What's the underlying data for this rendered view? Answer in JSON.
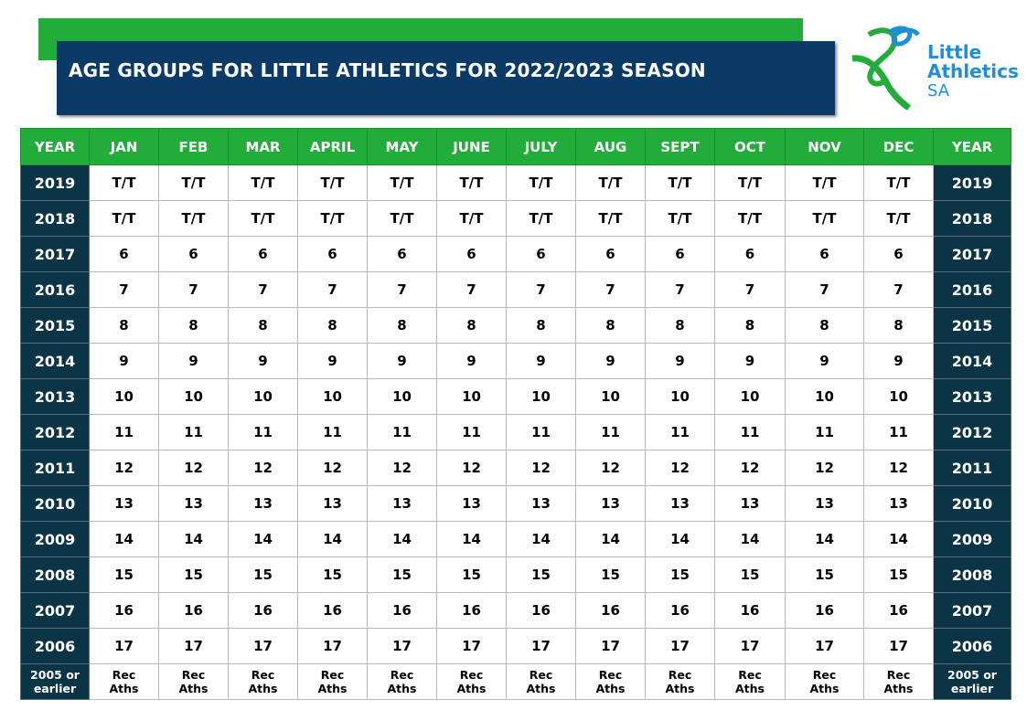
{
  "header": {
    "title": "AGE GROUPS FOR LITTLE ATHLETICS FOR 2022/2023 SEASON",
    "logo": {
      "line1": "Little",
      "line2": "Athletics",
      "line3": "SA"
    }
  },
  "table": {
    "columns": [
      "YEAR",
      "JAN",
      "FEB",
      "MAR",
      "APRIL",
      "MAY",
      "JUNE",
      "JULY",
      "AUG",
      "SEPT",
      "OCT",
      "NOV",
      "DEC",
      "YEAR"
    ],
    "rows": [
      [
        "2019",
        "T/T",
        "T/T",
        "T/T",
        "T/T",
        "T/T",
        "T/T",
        "T/T",
        "T/T",
        "T/T",
        "T/T",
        "T/T",
        "T/T",
        "2019"
      ],
      [
        "2018",
        "T/T",
        "T/T",
        "T/T",
        "T/T",
        "T/T",
        "T/T",
        "T/T",
        "T/T",
        "T/T",
        "T/T",
        "T/T",
        "T/T",
        "2018"
      ],
      [
        "2017",
        "6",
        "6",
        "6",
        "6",
        "6",
        "6",
        "6",
        "6",
        "6",
        "6",
        "6",
        "6",
        "2017"
      ],
      [
        "2016",
        "7",
        "7",
        "7",
        "7",
        "7",
        "7",
        "7",
        "7",
        "7",
        "7",
        "7",
        "7",
        "2016"
      ],
      [
        "2015",
        "8",
        "8",
        "8",
        "8",
        "8",
        "8",
        "8",
        "8",
        "8",
        "8",
        "8",
        "8",
        "2015"
      ],
      [
        "2014",
        "9",
        "9",
        "9",
        "9",
        "9",
        "9",
        "9",
        "9",
        "9",
        "9",
        "9",
        "9",
        "2014"
      ],
      [
        "2013",
        "10",
        "10",
        "10",
        "10",
        "10",
        "10",
        "10",
        "10",
        "10",
        "10",
        "10",
        "10",
        "2013"
      ],
      [
        "2012",
        "11",
        "11",
        "11",
        "11",
        "11",
        "11",
        "11",
        "11",
        "11",
        "11",
        "11",
        "11",
        "2012"
      ],
      [
        "2011",
        "12",
        "12",
        "12",
        "12",
        "12",
        "12",
        "12",
        "12",
        "12",
        "12",
        "12",
        "12",
        "2011"
      ],
      [
        "2010",
        "13",
        "13",
        "13",
        "13",
        "13",
        "13",
        "13",
        "13",
        "13",
        "13",
        "13",
        "13",
        "2010"
      ],
      [
        "2009",
        "14",
        "14",
        "14",
        "14",
        "14",
        "14",
        "14",
        "14",
        "14",
        "14",
        "14",
        "14",
        "2009"
      ],
      [
        "2008",
        "15",
        "15",
        "15",
        "15",
        "15",
        "15",
        "15",
        "15",
        "15",
        "15",
        "15",
        "15",
        "2008"
      ],
      [
        "2007",
        "16",
        "16",
        "16",
        "16",
        "16",
        "16",
        "16",
        "16",
        "16",
        "16",
        "16",
        "16",
        "2007"
      ],
      [
        "2006",
        "17",
        "17",
        "17",
        "17",
        "17",
        "17",
        "17",
        "17",
        "17",
        "17",
        "17",
        "17",
        "2006"
      ],
      [
        "2005 or earlier",
        "Rec Aths",
        "Rec Aths",
        "Rec Aths",
        "Rec Aths",
        "Rec Aths",
        "Rec Aths",
        "Rec Aths",
        "Rec Aths",
        "Rec Aths",
        "Rec Aths",
        "Rec Aths",
        "Rec Aths",
        "2005 or earlier"
      ]
    ]
  }
}
